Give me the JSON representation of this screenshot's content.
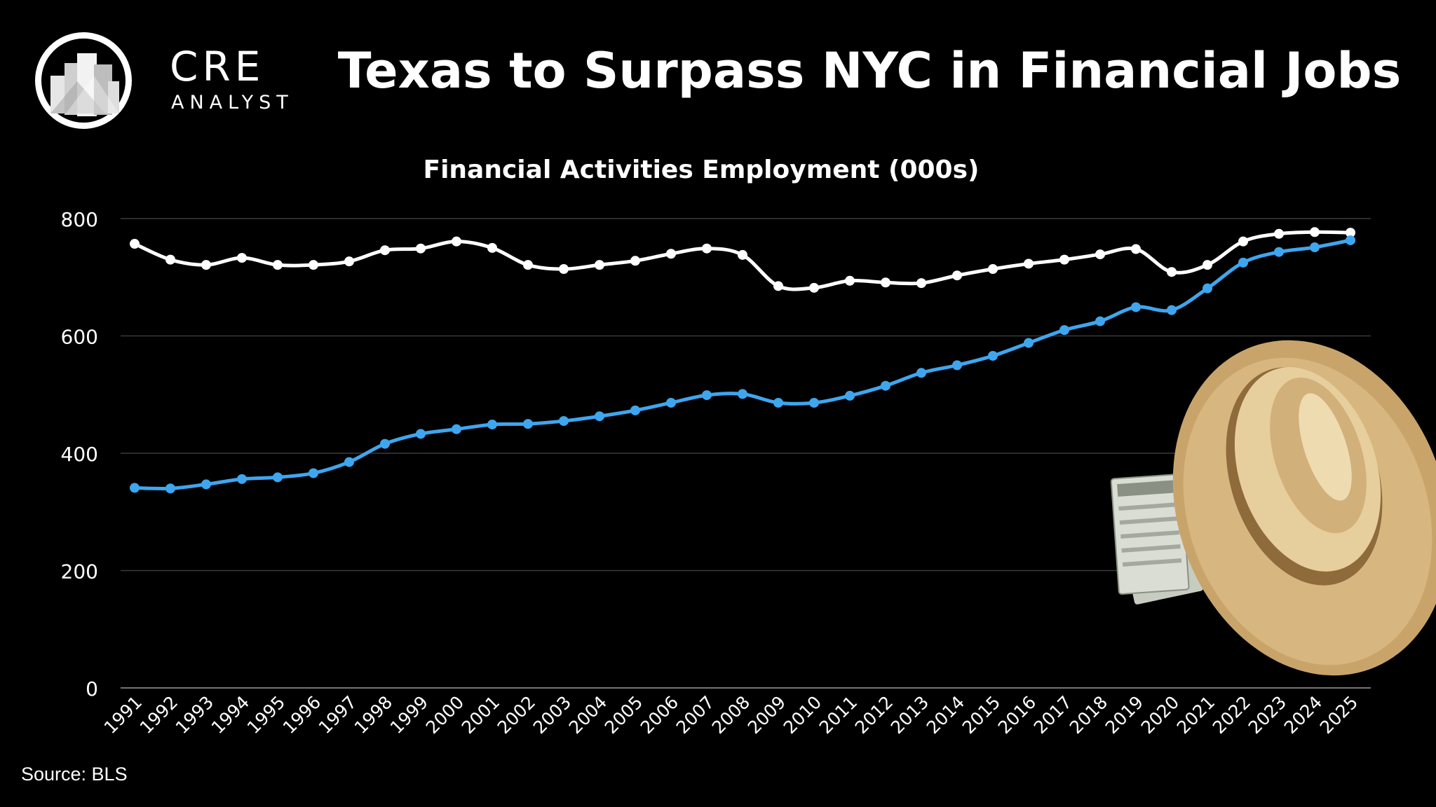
{
  "brand": {
    "name_line1": "CRE",
    "name_line2": "ANALYST"
  },
  "title": "Texas to Surpass NYC in Financial Jobs",
  "source": "Source: BLS",
  "decoration": {
    "icons": [
      "buildings-logo-icon",
      "cowboy-hat-icon",
      "dollar-bills-icon"
    ]
  },
  "chart_data": {
    "type": "line",
    "title": "Financial Activities Employment (000s)",
    "xlabel": "",
    "ylabel": "",
    "ylim": [
      0,
      800
    ],
    "yticks": [
      "0",
      "200",
      "400",
      "600",
      "800"
    ],
    "grid": true,
    "legend": "none",
    "categories": [
      "1991",
      "1992",
      "1993",
      "1994",
      "1995",
      "1996",
      "1997",
      "1998",
      "1999",
      "2000",
      "2001",
      "2002",
      "2003",
      "2004",
      "2005",
      "2006",
      "2007",
      "2008",
      "2009",
      "2010",
      "2011",
      "2012",
      "2013",
      "2014",
      "2015",
      "2016",
      "2017",
      "2018",
      "2019",
      "2020",
      "2021",
      "2022",
      "2023",
      "2024",
      "2025"
    ],
    "series": [
      {
        "color": "#ffffff",
        "values": [
          757,
          730,
          721,
          733,
          721,
          721,
          727,
          746,
          749,
          761,
          750,
          721,
          714,
          721,
          728,
          740,
          749,
          738,
          685,
          682,
          694,
          691,
          690,
          703,
          714,
          723,
          730,
          739,
          748,
          709,
          721,
          761,
          774,
          777,
          776
        ]
      },
      {
        "color": "#3ea6ee",
        "values": [
          341,
          340,
          347,
          356,
          359,
          366,
          385,
          416,
          433,
          441,
          449,
          450,
          455,
          463,
          473,
          486,
          499,
          501,
          486,
          486,
          498,
          515,
          537,
          550,
          566,
          588,
          610,
          625,
          649,
          644,
          681,
          725,
          743,
          751,
          763
        ]
      }
    ]
  }
}
